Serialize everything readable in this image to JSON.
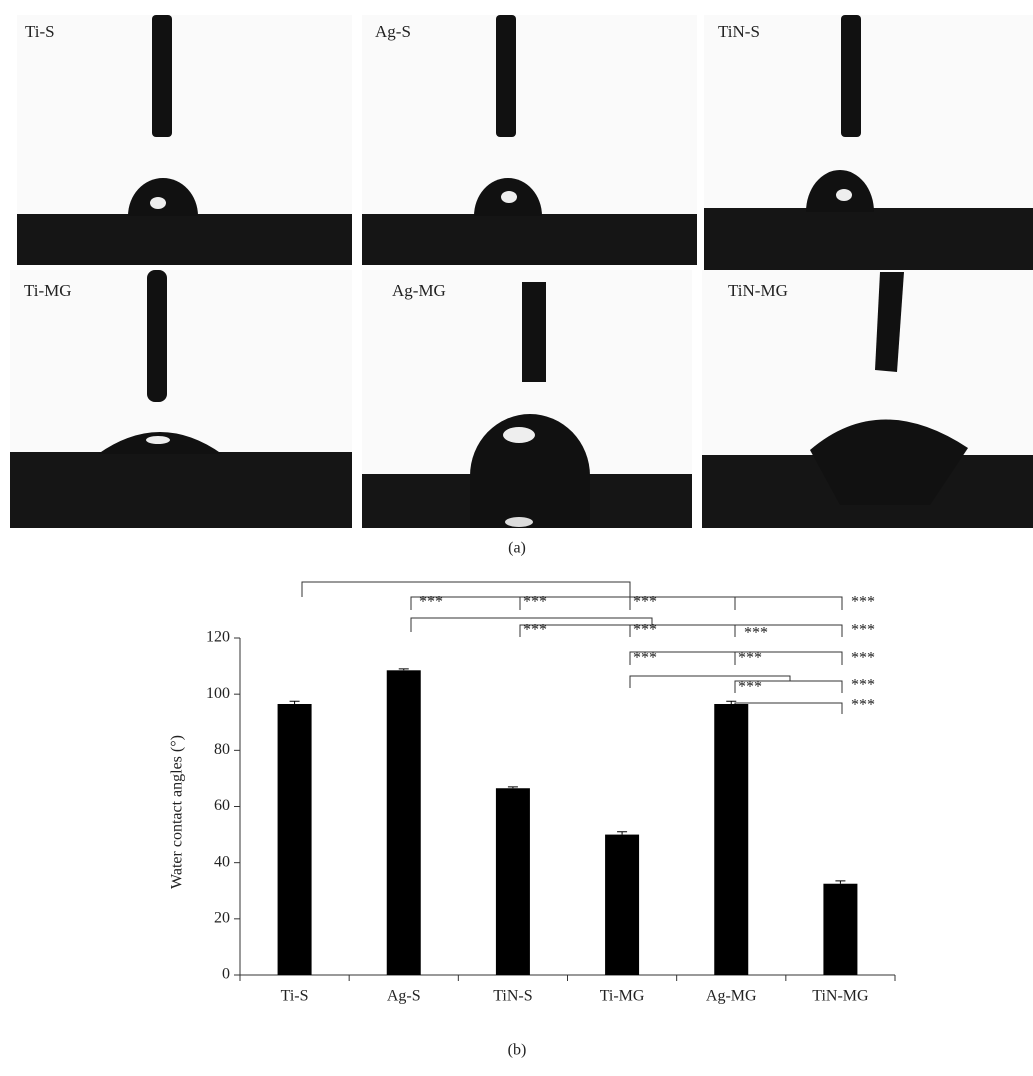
{
  "panel_a": {
    "labels": [
      "Ti-S",
      "Ag-S",
      "TiN-S",
      "Ti-MG",
      "Ag-MG",
      "TiN-MG"
    ],
    "caption": "(a)"
  },
  "chart_data": {
    "type": "bar",
    "caption": "(b)",
    "y_label": "Water contact angles (°)",
    "categories": [
      "Ti-S",
      "Ag-S",
      "TiN-S",
      "Ti-MG",
      "Ag-MG",
      "TiN-MG"
    ],
    "values": [
      96.5,
      108.5,
      66.5,
      50,
      96.5,
      32.5
    ],
    "errors": [
      1,
      0.5,
      0.5,
      1,
      1,
      1
    ],
    "color": "#000000",
    "ylim": [
      0,
      120
    ],
    "yticks": [
      0,
      20,
      40,
      60,
      80,
      100,
      120
    ],
    "annotations": [
      "***",
      "***",
      "***",
      "***",
      "***",
      "***",
      "***",
      "***",
      "***",
      "***",
      "***",
      "***",
      "***",
      "***"
    ]
  }
}
